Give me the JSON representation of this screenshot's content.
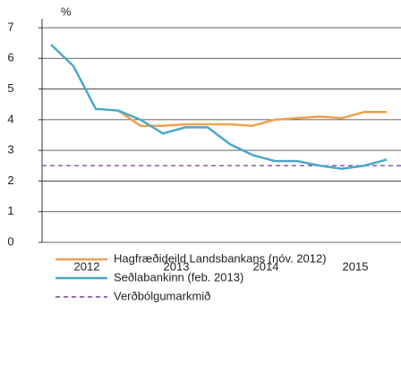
{
  "chart_data": {
    "type": "line",
    "y_label": "%",
    "x": [
      2012.1,
      2012.35,
      2012.6,
      2012.85,
      2013.1,
      2013.35,
      2013.6,
      2013.85,
      2014.1,
      2014.35,
      2014.6,
      2014.85,
      2015.1,
      2015.35,
      2015.6,
      2015.85
    ],
    "series": [
      {
        "name": "Hagfræðideild Landsbankans (nóv. 2012)",
        "color": "#f0a050",
        "values": [
          null,
          null,
          null,
          4.3,
          3.8,
          3.8,
          3.85,
          3.85,
          3.85,
          3.8,
          4.0,
          4.05,
          4.1,
          4.05,
          4.25,
          4.25
        ]
      },
      {
        "name": "Seðlabankinn (feb. 2013)",
        "color": "#4aa8c8",
        "values": [
          6.45,
          5.75,
          4.35,
          4.3,
          4.0,
          3.55,
          3.75,
          3.75,
          3.2,
          2.85,
          2.65,
          2.65,
          2.5,
          2.4,
          2.5,
          2.7
        ]
      }
    ],
    "reference_line": {
      "name": "Verðbólgumarkmið",
      "value": 2.5,
      "color": "#7a3c9a"
    },
    "xlim": [
      2012,
      2016.01
    ],
    "xticks": [
      {
        "value": 2012.5,
        "label": "2012"
      },
      {
        "value": 2013.5,
        "label": "2013"
      },
      {
        "value": 2014.5,
        "label": "2014"
      },
      {
        "value": 2015.5,
        "label": "2015"
      }
    ],
    "ylim": [
      0,
      7
    ],
    "yticks": [
      0,
      1,
      2,
      3,
      4,
      5,
      6,
      7
    ],
    "grid": true
  }
}
